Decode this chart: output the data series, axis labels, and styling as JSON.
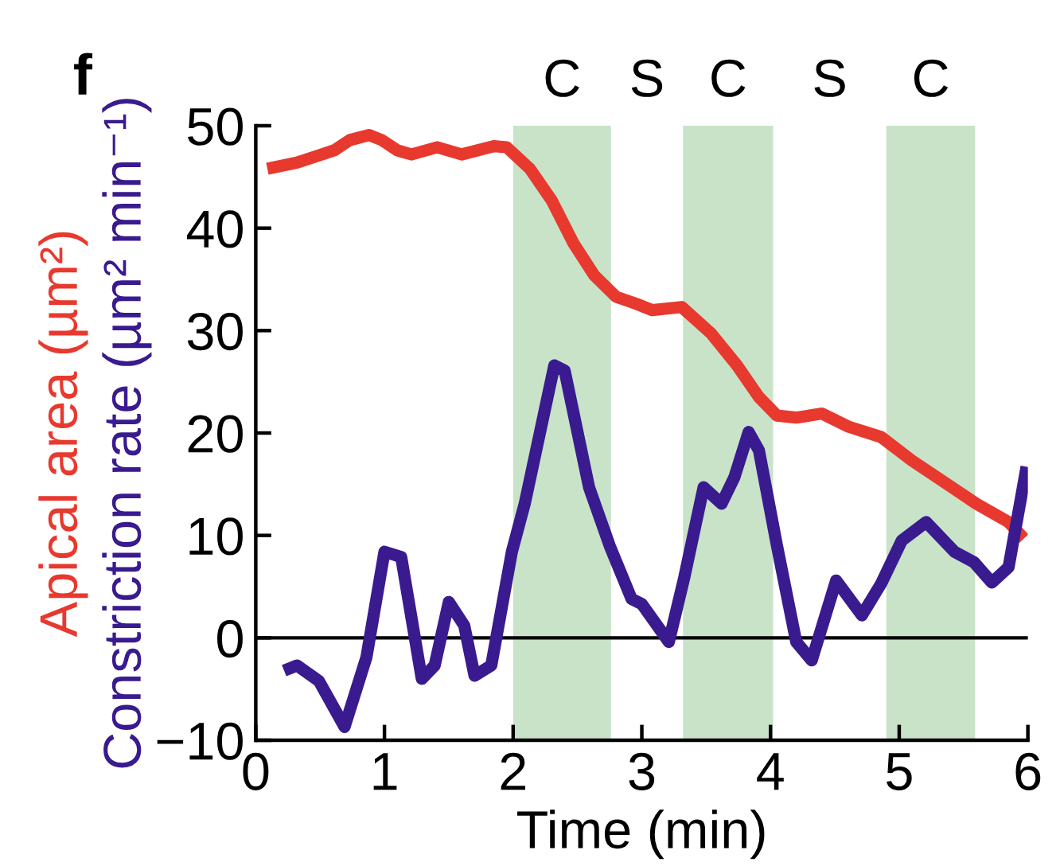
{
  "chart_data": {
    "type": "line",
    "title": "f",
    "xlabel": "Time (min)",
    "ylabel": "Apical area (µm²)\nConstriction rate (µm² min⁻¹)",
    "xlim": [
      0,
      6
    ],
    "xticks": [
      0,
      1,
      2,
      3,
      4,
      5,
      6
    ],
    "ylim": [
      -10,
      50
    ],
    "yticks": [
      {
        "value": -10,
        "label": "−10"
      },
      0,
      10,
      20,
      30,
      40,
      50
    ],
    "line_style": "solid",
    "series": [
      {
        "color": "#e8392f",
        "x": [
          0.09,
          0.32,
          0.49,
          0.61,
          0.73,
          0.88,
          0.98,
          1.1,
          1.21,
          1.41,
          1.6,
          1.85,
          1.95,
          2.13,
          2.3,
          2.47,
          2.63,
          2.8,
          2.96,
          3.08,
          3.31,
          3.54,
          3.74,
          3.91,
          4.05,
          4.2,
          4.4,
          4.61,
          4.86,
          5.1,
          5.35,
          5.6,
          5.85,
          5.97
        ],
        "values": [
          45.8,
          46.4,
          47.1,
          47.6,
          48.6,
          49.1,
          48.6,
          47.6,
          47.2,
          47.9,
          47.2,
          48.0,
          47.9,
          45.8,
          42.7,
          38.5,
          35.4,
          33.3,
          32.6,
          32.0,
          32.3,
          29.7,
          26.6,
          23.5,
          21.7,
          21.5,
          21.9,
          20.6,
          19.6,
          17.3,
          15.2,
          13.1,
          11.3,
          9.7
        ]
      },
      {
        "color": "#3a1a8f",
        "x": [
          0.22,
          0.32,
          0.49,
          0.69,
          0.86,
          1.0,
          1.13,
          1.29,
          1.39,
          1.5,
          1.62,
          1.7,
          1.83,
          1.99,
          2.09,
          2.32,
          2.4,
          2.59,
          2.75,
          2.92,
          3.0,
          3.21,
          3.33,
          3.48,
          3.62,
          3.72,
          3.83,
          3.91,
          4.05,
          4.2,
          4.32,
          4.51,
          4.71,
          4.86,
          5.02,
          5.21,
          5.43,
          5.58,
          5.72,
          5.85,
          5.99
        ],
        "values": [
          -3.2,
          -2.7,
          -4.2,
          -8.7,
          -1.9,
          8.4,
          7.9,
          -4.0,
          -2.7,
          3.5,
          1.2,
          -3.7,
          -2.7,
          8.4,
          13.1,
          26.6,
          26.1,
          14.7,
          9.0,
          3.8,
          3.3,
          -0.4,
          5.9,
          14.7,
          13.1,
          15.7,
          20.1,
          18.3,
          9.0,
          -0.4,
          -2.2,
          5.6,
          2.2,
          5.3,
          9.5,
          11.3,
          8.4,
          7.4,
          5.4,
          6.9,
          16.7
        ]
      }
    ],
    "ref_lines": [
      {
        "axis": "y",
        "value": 0,
        "color": "#000000"
      }
    ],
    "bands": [
      {
        "axis": "x",
        "from": 2.0,
        "to": 2.76,
        "label": "C",
        "color": "#c8e3c8"
      },
      {
        "axis": "x",
        "from": 3.32,
        "to": 4.02,
        "label": "C",
        "color": "#c8e3c8"
      },
      {
        "axis": "x",
        "from": 4.9,
        "to": 5.59,
        "label": "C",
        "color": "#c8e3c8"
      }
    ],
    "annotations": [
      "S",
      "S"
    ]
  }
}
